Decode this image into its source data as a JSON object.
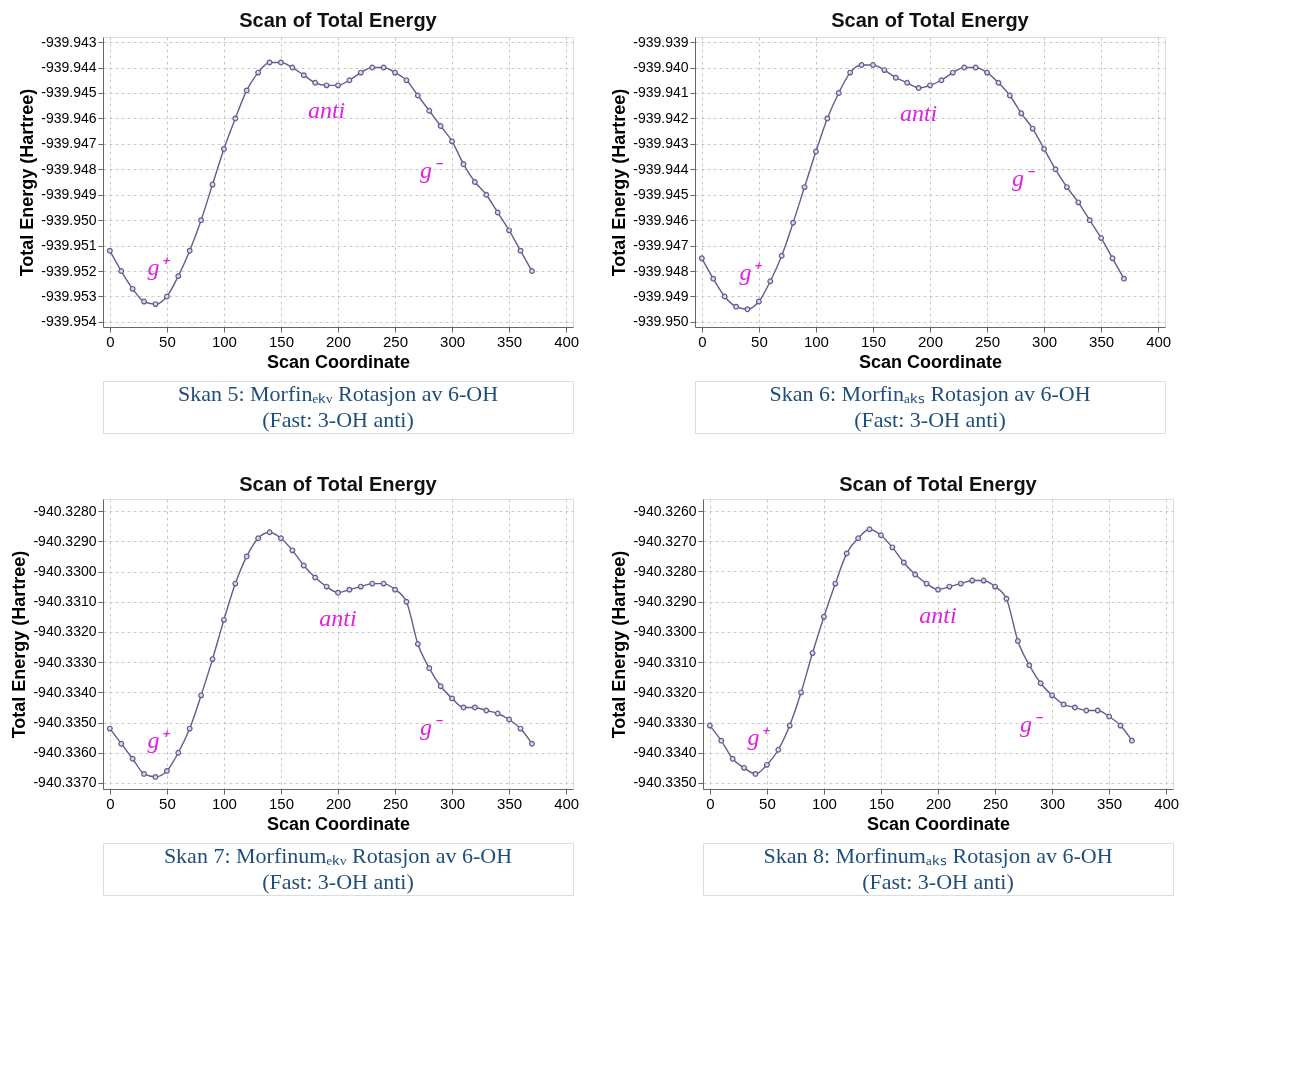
{
  "chart_data": [
    {
      "type": "line",
      "title": "Scan of Total Energy",
      "xlabel": "Scan Coordinate",
      "ylabel": "Total Energy (Hartree)",
      "x": [
        0,
        10,
        20,
        30,
        40,
        50,
        60,
        70,
        80,
        90,
        100,
        110,
        120,
        130,
        140,
        150,
        160,
        170,
        180,
        190,
        200,
        210,
        220,
        230,
        240,
        250,
        260,
        270,
        280,
        290,
        300,
        310,
        320,
        330,
        340,
        350,
        360,
        370
      ],
      "series": [
        {
          "color": "#5f5f8f",
          "values": [
            -939.9512,
            -939.952,
            -939.9527,
            -939.9532,
            -939.9533,
            -939.953,
            -939.9522,
            -939.9512,
            -939.95,
            -939.9486,
            -939.9472,
            -939.946,
            -939.9449,
            -939.9442,
            -939.9438,
            -939.9438,
            -939.944,
            -939.9443,
            -939.9446,
            -939.9447,
            -939.9447,
            -939.9445,
            -939.9442,
            -939.944,
            -939.944,
            -939.9442,
            -939.9445,
            -939.9451,
            -939.9457,
            -939.9463,
            -939.9469,
            -939.9478,
            -939.9485,
            -939.949,
            -939.9497,
            -939.9504,
            -939.9512,
            -939.952
          ]
        }
      ],
      "xlim": [
        -6,
        406
      ],
      "xticks": [
        0,
        50,
        100,
        150,
        200,
        250,
        300,
        350,
        400
      ],
      "ylim": [
        -939.9542,
        -939.9428
      ],
      "yticks": [
        -939.943,
        -939.944,
        -939.945,
        -939.946,
        -939.947,
        -939.948,
        -939.949,
        {
          "value": -939.95,
          "label": "-939.950"
        },
        -939.951,
        -939.952,
        -939.953,
        -939.954
      ],
      "grid": true,
      "marker": "circle",
      "annotations": [
        {
          "text": "g⁺",
          "x": 40,
          "y": -939.9533
        },
        {
          "text": "anti",
          "x": 190,
          "y": -939.9447
        },
        {
          "text": "g⁻",
          "x": 300,
          "y": -939.9469
        },
        "Skan 5: Morfinₑₖᵥ Rotasjon av 6-OH",
        "(Fast: 3-OH anti)"
      ]
    },
    {
      "type": "line",
      "title": "Scan of Total Energy",
      "xlabel": "Scan Coordinate",
      "ylabel": "Total Energy (Hartree)",
      "x": [
        0,
        10,
        20,
        30,
        40,
        50,
        60,
        70,
        80,
        90,
        100,
        110,
        120,
        130,
        140,
        150,
        160,
        170,
        180,
        190,
        200,
        210,
        220,
        230,
        240,
        250,
        260,
        270,
        280,
        290,
        300,
        310,
        320,
        330,
        340,
        350,
        360,
        370
      ],
      "series": [
        {
          "color": "#5f5f8f",
          "values": [
            -939.9475,
            -939.9483,
            -939.949,
            -939.9494,
            -939.9495,
            -939.9492,
            -939.9484,
            -939.9474,
            -939.9461,
            -939.9447,
            -939.9433,
            -939.942,
            -939.941,
            -939.9402,
            -939.9399,
            -939.9399,
            -939.9401,
            -939.9404,
            -939.9406,
            -939.9408,
            -939.9407,
            -939.9405,
            -939.9402,
            -939.94,
            -939.94,
            -939.9402,
            -939.9406,
            -939.9411,
            -939.9418,
            -939.9424,
            -939.9432,
            -939.944,
            -939.9447,
            -939.9453,
            -939.946,
            -939.9467,
            -939.9475,
            -939.9483
          ]
        }
      ],
      "xlim": [
        -6,
        406
      ],
      "xticks": [
        0,
        50,
        100,
        150,
        200,
        250,
        300,
        350,
        400
      ],
      "ylim": [
        -939.9502,
        -939.9388
      ],
      "yticks": [
        -939.939,
        {
          "value": -939.94,
          "label": "-939.940"
        },
        -939.941,
        -939.942,
        -939.943,
        -939.944,
        -939.945,
        -939.946,
        -939.947,
        -939.948,
        -939.949,
        {
          "value": -939.95,
          "label": "-939.950"
        }
      ],
      "grid": true,
      "marker": "circle",
      "annotations": [
        {
          "text": "g⁺",
          "x": 40,
          "y": -939.9495
        },
        {
          "text": "anti",
          "x": 190,
          "y": -939.9408
        },
        {
          "text": "g⁻",
          "x": 300,
          "y": -939.9432
        },
        "Skan 6: Morfinₐₖₛ Rotasjon av 6-OH",
        "(Fast: 3-OH anti)"
      ]
    },
    {
      "type": "line",
      "title": "Scan of Total Energy",
      "xlabel": "Scan Coordinate",
      "ylabel": "Total Energy (Hartree)",
      "x": [
        0,
        10,
        20,
        30,
        40,
        50,
        60,
        70,
        80,
        90,
        100,
        110,
        120,
        130,
        140,
        150,
        160,
        170,
        180,
        190,
        200,
        210,
        220,
        230,
        240,
        250,
        260,
        270,
        280,
        290,
        300,
        310,
        320,
        330,
        340,
        350,
        360,
        370
      ],
      "series": [
        {
          "color": "#5f5f8f",
          "values": [
            -940.3352,
            -940.3357,
            -940.3362,
            -940.3367,
            -940.3368,
            -940.3366,
            -940.336,
            -940.3352,
            -940.3341,
            -940.3329,
            -940.3316,
            -940.3304,
            -940.3295,
            -940.3289,
            -940.3287,
            -940.3289,
            -940.3293,
            -940.3298,
            -940.3302,
            -940.3305,
            -940.3307,
            -940.3306,
            -940.3305,
            -940.3304,
            -940.3304,
            -940.3306,
            -940.331,
            -940.3324,
            -940.3332,
            -940.3338,
            -940.3342,
            -940.3345,
            -940.3345,
            -940.3346,
            -940.3347,
            -940.3349,
            -940.3352,
            -940.3357
          ]
        }
      ],
      "xlim": [
        -6,
        406
      ],
      "xticks": [
        0,
        50,
        100,
        150,
        200,
        250,
        300,
        350,
        400
      ],
      "ylim": [
        -940.3372,
        -940.3276
      ],
      "yticks": [
        {
          "value": -940.328,
          "label": "-940.3280"
        },
        {
          "value": -940.329,
          "label": "-940.3290"
        },
        {
          "value": -940.33,
          "label": "-940.3300"
        },
        {
          "value": -940.331,
          "label": "-940.3310"
        },
        {
          "value": -940.332,
          "label": "-940.3320"
        },
        {
          "value": -940.333,
          "label": "-940.3330"
        },
        {
          "value": -940.334,
          "label": "-940.3340"
        },
        {
          "value": -940.335,
          "label": "-940.3350"
        },
        {
          "value": -940.336,
          "label": "-940.3360"
        },
        {
          "value": -940.337,
          "label": "-940.3370"
        }
      ],
      "grid": true,
      "marker": "circle",
      "annotations": [
        {
          "text": "g⁺",
          "x": 40,
          "y": -940.3368
        },
        {
          "text": "anti",
          "x": 200,
          "y": -940.3307
        },
        {
          "text": "g⁻",
          "x": 300,
          "y": -940.3342
        },
        "Skan 7: Morfinumₑₖᵥ Rotasjon av 6-OH",
        "(Fast: 3-OH anti)"
      ]
    },
    {
      "type": "line",
      "title": "Scan of Total Energy",
      "xlabel": "Scan Coordinate",
      "ylabel": "Total Energy (Hartree)",
      "x": [
        0,
        10,
        20,
        30,
        40,
        50,
        60,
        70,
        80,
        90,
        100,
        110,
        120,
        130,
        140,
        150,
        160,
        170,
        180,
        190,
        200,
        210,
        220,
        230,
        240,
        250,
        260,
        270,
        280,
        290,
        300,
        310,
        320,
        330,
        340,
        350,
        360,
        370
      ],
      "series": [
        {
          "color": "#5f5f8f",
          "values": [
            -940.3331,
            -940.3336,
            -940.3342,
            -940.3345,
            -940.3347,
            -940.3344,
            -940.3339,
            -940.3331,
            -940.332,
            -940.3307,
            -940.3295,
            -940.3284,
            -940.3274,
            -940.3269,
            -940.3266,
            -940.3268,
            -940.3272,
            -940.3277,
            -940.3281,
            -940.3284,
            -940.3286,
            -940.3285,
            -940.3284,
            -940.3283,
            -940.3283,
            -940.3285,
            -940.3289,
            -940.3303,
            -940.3311,
            -940.3317,
            -940.3321,
            -940.3324,
            -940.3325,
            -940.3326,
            -940.3326,
            -940.3328,
            -940.3331,
            -940.3336
          ]
        }
      ],
      "xlim": [
        -6,
        406
      ],
      "xticks": [
        0,
        50,
        100,
        150,
        200,
        250,
        300,
        350,
        400
      ],
      "ylim": [
        -940.3352,
        -940.3256
      ],
      "yticks": [
        {
          "value": -940.326,
          "label": "-940.3260"
        },
        {
          "value": -940.327,
          "label": "-940.3270"
        },
        {
          "value": -940.328,
          "label": "-940.3280"
        },
        {
          "value": -940.329,
          "label": "-940.3290"
        },
        {
          "value": -940.33,
          "label": "-940.3300"
        },
        {
          "value": -940.331,
          "label": "-940.3310"
        },
        {
          "value": -940.332,
          "label": "-940.3320"
        },
        {
          "value": -940.333,
          "label": "-940.3330"
        },
        {
          "value": -940.334,
          "label": "-940.3340"
        },
        {
          "value": -940.335,
          "label": "-940.3350"
        }
      ],
      "grid": true,
      "marker": "circle",
      "annotations": [
        {
          "text": "g⁺",
          "x": 40,
          "y": -940.3347
        },
        {
          "text": "anti",
          "x": 200,
          "y": -940.3286
        },
        {
          "text": "g⁻",
          "x": 300,
          "y": -940.3321
        },
        "Skan 8: Morfinumₐₖₛ Rotasjon av 6-OH",
        "(Fast: 3-OH anti)"
      ]
    }
  ]
}
